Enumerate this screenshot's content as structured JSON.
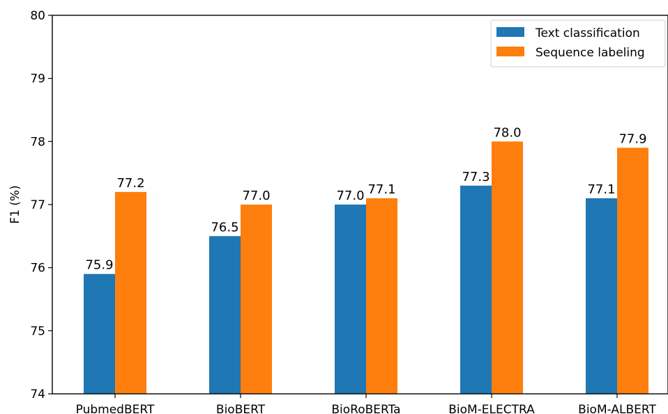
{
  "chart_data": {
    "type": "bar",
    "title": "",
    "xlabel": "",
    "ylabel": "F1 (%)",
    "ylim": [
      74,
      80
    ],
    "yticks": [
      74,
      75,
      76,
      77,
      78,
      79,
      80
    ],
    "grid": false,
    "legend_position": "top-right",
    "categories": [
      "PubmedBERT",
      "BioBERT",
      "BioRoBERTa",
      "BioM-ELECTRA",
      "BioM-ALBERT"
    ],
    "series": [
      {
        "name": "Text classification",
        "color": "#1f77b4",
        "values": [
          75.9,
          76.5,
          77.0,
          77.3,
          77.1
        ],
        "labels": [
          "75.9",
          "76.5",
          "77.0",
          "77.3",
          "77.1"
        ]
      },
      {
        "name": "Sequence labeling",
        "color": "#ff7f0e",
        "values": [
          77.2,
          77.0,
          77.1,
          78.0,
          77.9
        ],
        "labels": [
          "77.2",
          "77.0",
          "77.1",
          "78.0",
          "77.9"
        ]
      }
    ]
  }
}
